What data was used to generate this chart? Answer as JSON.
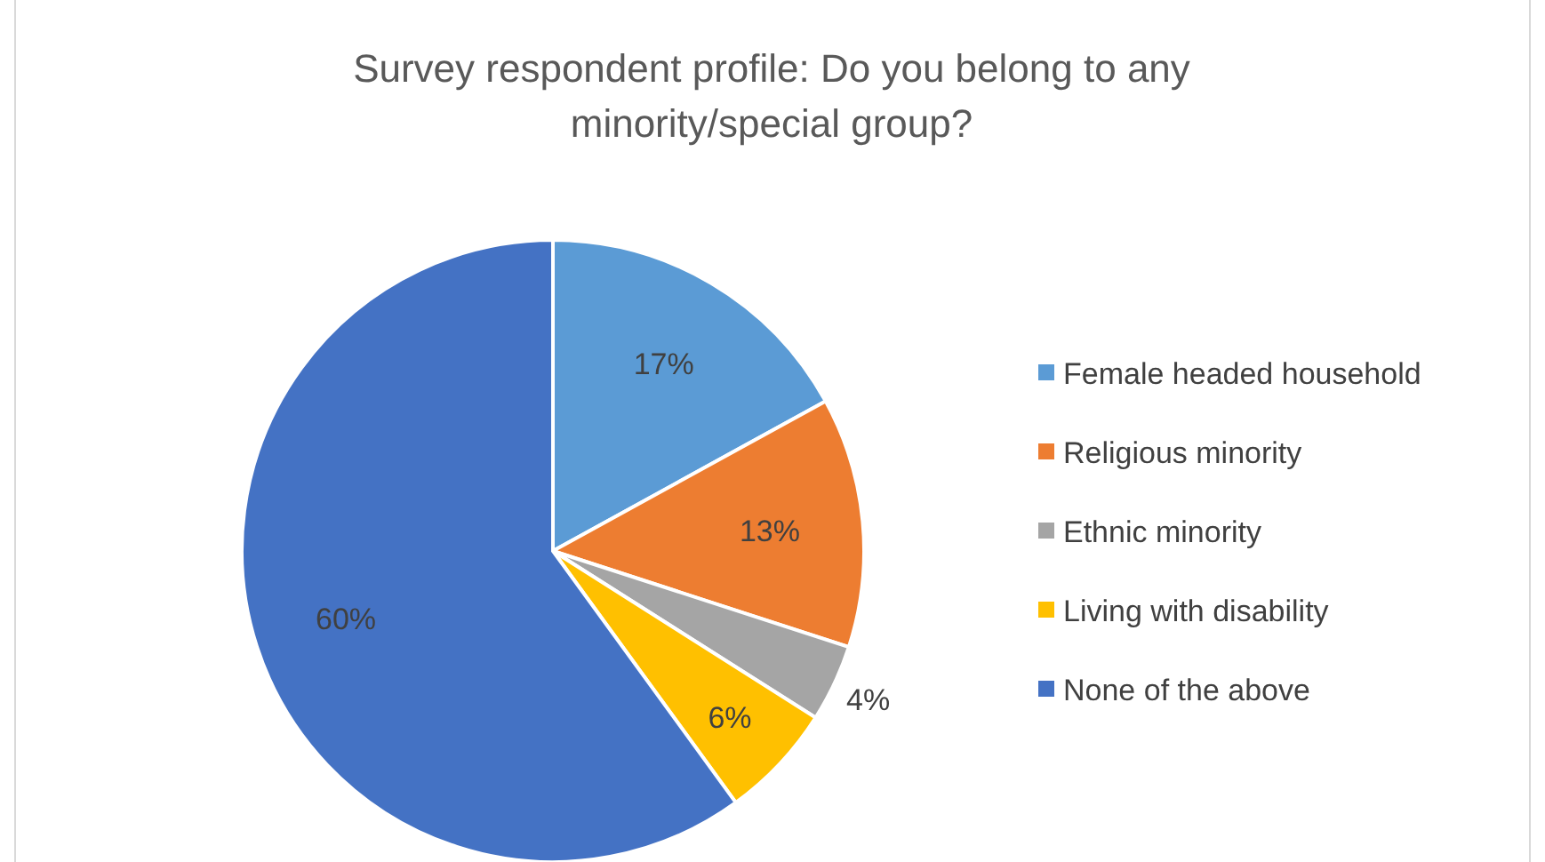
{
  "chart_data": {
    "type": "pie",
    "title": "Survey respondent profile: Do you belong to any minority/special group?",
    "categories": [
      "Female headed household",
      "Religious minority",
      "Ethnic minority",
      "Living with disability",
      "None of the above"
    ],
    "values": [
      17,
      13,
      4,
      6,
      60
    ],
    "colors": [
      "#5b9bd5",
      "#ed7d31",
      "#a5a5a5",
      "#ffc000",
      "#4472c4"
    ],
    "value_labels": [
      "17%",
      "13%",
      "4%",
      "6%",
      "60%"
    ],
    "legend": "right"
  }
}
